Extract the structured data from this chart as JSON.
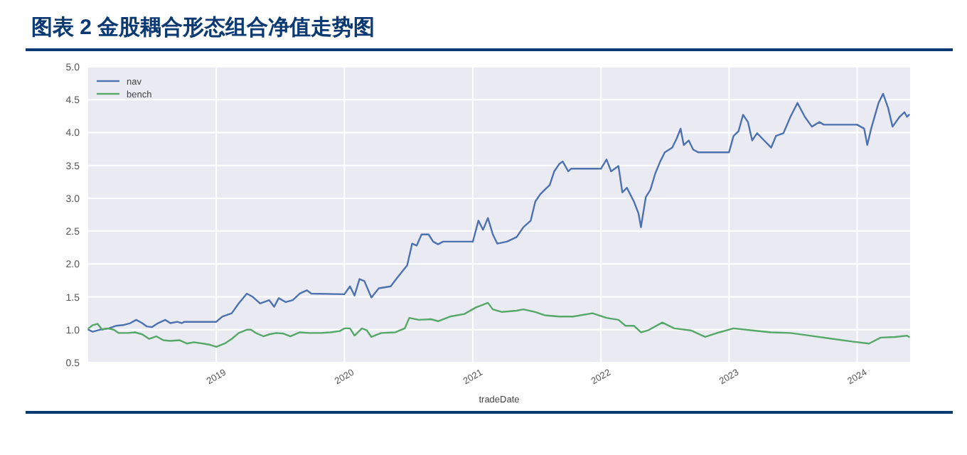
{
  "chart_data": {
    "type": "line",
    "title": "图表 2  金股耦合形态组合净值走势图",
    "xlabel": "tradeDate",
    "xlim": [
      "2018-01-01",
      "2024-05-31"
    ],
    "xticks": [
      {
        "value": "2019-01-01",
        "label": "2019"
      },
      {
        "value": "2020-01-01",
        "label": "2020"
      },
      {
        "value": "2021-01-01",
        "label": "2021"
      },
      {
        "value": "2022-01-01",
        "label": "2022"
      },
      {
        "value": "2023-01-01",
        "label": "2023"
      },
      {
        "value": "2024-01-01",
        "label": "2024"
      }
    ],
    "ylim": [
      0.5,
      5.0
    ],
    "yticks": [
      {
        "value": 0.5,
        "label": "0.5"
      },
      {
        "value": 1,
        "label": "1.0"
      },
      {
        "value": 1.5,
        "label": "1.5"
      },
      {
        "value": 2,
        "label": "2.0"
      },
      {
        "value": 2.5,
        "label": "2.5"
      },
      {
        "value": 3,
        "label": "3.0"
      },
      {
        "value": 3.5,
        "label": "3.5"
      },
      {
        "value": 4,
        "label": "4.0"
      },
      {
        "value": 4.5,
        "label": "4.5"
      },
      {
        "value": 5,
        "label": "5.0"
      }
    ],
    "grid": true,
    "legend": "top left",
    "marker": "none",
    "line_style": "solid",
    "series": [
      {
        "name": "nav",
        "color": "#4c72b0",
        "x": [
          "2018-01-02",
          "2018-01-14",
          "2018-02-03",
          "2018-03-01",
          "2018-03-22",
          "2018-04-10",
          "2018-05-01",
          "2018-05-18",
          "2018-06-04",
          "2018-06-17",
          "2018-07-02",
          "2018-07-19",
          "2018-08-09",
          "2018-08-23",
          "2018-09-12",
          "2018-09-25",
          "2018-10-02",
          "2019-01-01",
          "2019-01-18",
          "2019-02-14",
          "2019-03-06",
          "2019-03-29",
          "2019-04-15",
          "2019-05-06",
          "2019-06-01",
          "2019-06-15",
          "2019-06-28",
          "2019-07-18",
          "2019-08-07",
          "2019-08-27",
          "2019-09-16",
          "2019-09-29",
          "2020-01-01",
          "2020-01-17",
          "2020-01-30",
          "2020-02-13",
          "2020-02-27",
          "2020-03-18",
          "2020-04-08",
          "2020-05-12",
          "2020-06-01",
          "2020-06-28",
          "2020-07-12",
          "2020-07-25",
          "2020-08-08",
          "2020-08-28",
          "2020-09-10",
          "2020-09-24",
          "2020-10-08",
          "2021-01-01",
          "2021-01-17",
          "2021-01-30",
          "2021-02-13",
          "2021-02-27",
          "2021-03-12",
          "2021-04-08",
          "2021-05-06",
          "2021-05-25",
          "2021-06-15",
          "2021-06-28",
          "2021-07-12",
          "2021-07-25",
          "2021-08-08",
          "2021-08-21",
          "2021-09-04",
          "2021-09-14",
          "2021-09-30",
          "2021-10-08",
          "2022-01-01",
          "2022-01-17",
          "2022-01-30",
          "2022-02-20",
          "2022-03-03",
          "2022-03-16",
          "2022-04-05",
          "2022-04-18",
          "2022-04-25",
          "2022-05-09",
          "2022-05-22",
          "2022-06-05",
          "2022-06-19",
          "2022-07-02",
          "2022-07-23",
          "2022-08-05",
          "2022-08-16",
          "2022-08-25",
          "2022-09-08",
          "2022-09-21",
          "2022-10-05",
          "2023-01-01",
          "2023-01-14",
          "2023-01-28",
          "2023-02-10",
          "2023-02-24",
          "2023-03-08",
          "2023-03-22",
          "2023-04-11",
          "2023-05-01",
          "2023-05-15",
          "2023-06-05",
          "2023-06-25",
          "2023-07-15",
          "2023-08-05",
          "2023-08-25",
          "2023-09-15",
          "2023-09-28",
          "2024-01-01",
          "2024-01-21",
          "2024-01-30",
          "2024-02-10",
          "2024-03-02",
          "2024-03-15",
          "2024-03-29",
          "2024-04-11",
          "2024-05-01",
          "2024-05-15",
          "2024-05-22",
          "2024-05-28"
        ],
        "values": [
          1.0,
          0.97,
          1.0,
          1.02,
          1.06,
          1.07,
          1.1,
          1.15,
          1.1,
          1.05,
          1.04,
          1.1,
          1.15,
          1.1,
          1.12,
          1.1,
          1.12,
          1.12,
          1.2,
          1.25,
          1.4,
          1.55,
          1.5,
          1.4,
          1.45,
          1.35,
          1.48,
          1.42,
          1.45,
          1.55,
          1.6,
          1.55,
          1.54,
          1.66,
          1.52,
          1.77,
          1.74,
          1.49,
          1.63,
          1.66,
          1.8,
          1.98,
          2.31,
          2.28,
          2.45,
          2.45,
          2.34,
          2.3,
          2.34,
          2.34,
          2.66,
          2.52,
          2.7,
          2.45,
          2.31,
          2.34,
          2.41,
          2.56,
          2.66,
          2.95,
          3.06,
          3.13,
          3.2,
          3.41,
          3.52,
          3.56,
          3.41,
          3.45,
          3.45,
          3.59,
          3.41,
          3.49,
          3.09,
          3.16,
          2.95,
          2.77,
          2.56,
          3.02,
          3.13,
          3.38,
          3.56,
          3.7,
          3.77,
          3.91,
          4.06,
          3.81,
          3.88,
          3.74,
          3.7,
          3.7,
          3.95,
          4.02,
          4.27,
          4.16,
          3.88,
          3.99,
          3.88,
          3.77,
          3.95,
          3.99,
          4.24,
          4.45,
          4.24,
          4.09,
          4.16,
          4.12,
          4.12,
          4.06,
          3.81,
          4.06,
          4.45,
          4.59,
          4.38,
          4.09,
          4.24,
          4.31,
          4.24,
          4.27
        ]
      },
      {
        "name": "bench",
        "color": "#55a868",
        "x": [
          "2018-01-02",
          "2018-01-14",
          "2018-01-28",
          "2018-02-10",
          "2018-02-24",
          "2018-03-15",
          "2018-03-29",
          "2018-04-24",
          "2018-05-15",
          "2018-06-04",
          "2018-06-24",
          "2018-07-14",
          "2018-08-03",
          "2018-08-23",
          "2018-09-19",
          "2018-10-09",
          "2018-10-29",
          "2018-11-24",
          "2018-12-15",
          "2019-01-01",
          "2019-01-25",
          "2019-02-14",
          "2019-03-06",
          "2019-03-29",
          "2019-04-10",
          "2019-04-24",
          "2019-05-15",
          "2019-06-01",
          "2019-06-21",
          "2019-07-12",
          "2019-07-31",
          "2019-08-27",
          "2019-09-23",
          "2019-10-27",
          "2019-11-22",
          "2019-12-19",
          "2020-01-01",
          "2020-01-17",
          "2020-01-30",
          "2020-02-20",
          "2020-03-05",
          "2020-03-18",
          "2020-04-15",
          "2020-05-25",
          "2020-06-21",
          "2020-07-04",
          "2020-07-31",
          "2020-09-04",
          "2020-09-24",
          "2020-10-28",
          "2020-12-08",
          "2021-01-10",
          "2021-01-30",
          "2021-02-13",
          "2021-02-27",
          "2021-03-25",
          "2021-05-06",
          "2021-05-25",
          "2021-06-28",
          "2021-07-25",
          "2021-09-04",
          "2021-10-14",
          "2021-12-08",
          "2022-01-17",
          "2022-02-20",
          "2022-03-12",
          "2022-03-16",
          "2022-04-05",
          "2022-04-25",
          "2022-05-15",
          "2022-06-25",
          "2022-07-29",
          "2022-09-14",
          "2022-10-25",
          "2022-12-04",
          "2023-01-14",
          "2023-03-08",
          "2023-05-01",
          "2023-06-25",
          "2023-08-19",
          "2023-10-25",
          "2023-12-17",
          "2024-02-04",
          "2024-03-08",
          "2024-04-18",
          "2024-05-22",
          "2024-05-28"
        ],
        "values": [
          1.02,
          1.07,
          1.09,
          1.0,
          1.02,
          1.0,
          0.95,
          0.95,
          0.96,
          0.93,
          0.86,
          0.9,
          0.84,
          0.83,
          0.84,
          0.79,
          0.81,
          0.79,
          0.77,
          0.74,
          0.79,
          0.86,
          0.95,
          1.0,
          1.0,
          0.95,
          0.9,
          0.93,
          0.95,
          0.94,
          0.9,
          0.96,
          0.95,
          0.95,
          0.96,
          0.98,
          1.02,
          1.02,
          0.91,
          1.02,
          0.99,
          0.89,
          0.95,
          0.96,
          1.02,
          1.18,
          1.15,
          1.16,
          1.13,
          1.2,
          1.24,
          1.34,
          1.38,
          1.41,
          1.31,
          1.27,
          1.29,
          1.31,
          1.27,
          1.22,
          1.2,
          1.2,
          1.25,
          1.18,
          1.15,
          1.06,
          1.06,
          1.06,
          0.96,
          0.99,
          1.11,
          1.02,
          0.99,
          0.89,
          0.96,
          1.02,
          0.99,
          0.96,
          0.95,
          0.91,
          0.86,
          0.82,
          0.79,
          0.88,
          0.89,
          0.91,
          0.89
        ]
      }
    ]
  }
}
